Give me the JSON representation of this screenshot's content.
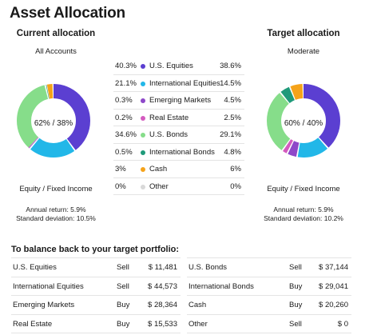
{
  "title": "Asset Allocation",
  "current": {
    "heading": "Current allocation",
    "subheading": "All Accounts",
    "center_label": "62% / 38%",
    "split_label": "Equity / Fixed Income",
    "annual_return": "Annual return: 5.9%",
    "std_dev": "Standard deviation: 10.5%"
  },
  "target": {
    "heading": "Target allocation",
    "subheading": "Moderate",
    "center_label": "60% / 40%",
    "split_label": "Equity / Fixed Income",
    "annual_return": "Annual return: 5.9%",
    "std_dev": "Standard deviation: 10.2%"
  },
  "legend": [
    {
      "current": "40.3%",
      "name": "U.S. Equities",
      "target": "38.6%",
      "color": "#5b3fd1",
      "icon": "dot-icon"
    },
    {
      "current": "21.1%",
      "name": "International Equities",
      "target": "14.5%",
      "color": "#22b7e8",
      "icon": "dot-icon"
    },
    {
      "current": "0.3%",
      "name": "Emerging Markets",
      "target": "4.5%",
      "color": "#8e48c9",
      "icon": "dot-icon"
    },
    {
      "current": "0.2%",
      "name": "Real Estate",
      "target": "2.5%",
      "color": "#d45bbf",
      "icon": "dot-icon"
    },
    {
      "current": "34.6%",
      "name": "U.S. Bonds",
      "target": "29.1%",
      "color": "#86dd8a",
      "icon": "dot-icon"
    },
    {
      "current": "0.5%",
      "name": "International Bonds",
      "target": "4.8%",
      "color": "#1f9a7a",
      "icon": "dot-icon"
    },
    {
      "current": "3%",
      "name": "Cash",
      "target": "6%",
      "color": "#f5a31a",
      "icon": "dot-icon"
    },
    {
      "current": "0%",
      "name": "Other",
      "target": "0%",
      "color": "#d9d9d9",
      "icon": "dot-icon"
    }
  ],
  "chart_data": [
    {
      "type": "pie",
      "title": "Current allocation",
      "categories": [
        "U.S. Equities",
        "International Equities",
        "Emerging Markets",
        "Real Estate",
        "U.S. Bonds",
        "International Bonds",
        "Cash",
        "Other"
      ],
      "values": [
        40.3,
        21.1,
        0.3,
        0.2,
        34.6,
        0.5,
        3,
        0
      ]
    },
    {
      "type": "pie",
      "title": "Target allocation",
      "categories": [
        "U.S. Equities",
        "International Equities",
        "Emerging Markets",
        "Real Estate",
        "U.S. Bonds",
        "International Bonds",
        "Cash",
        "Other"
      ],
      "values": [
        38.6,
        14.5,
        4.5,
        2.5,
        29.1,
        4.8,
        6,
        0
      ]
    }
  ],
  "balance": {
    "title": "To balance back to your target portfolio:",
    "left": [
      {
        "name": "U.S. Equities",
        "action": "Sell",
        "amount": "$ 11,481"
      },
      {
        "name": "International Equities",
        "action": "Sell",
        "amount": "$ 44,573"
      },
      {
        "name": "Emerging Markets",
        "action": "Buy",
        "amount": "$ 28,364"
      },
      {
        "name": "Real Estate",
        "action": "Buy",
        "amount": "$ 15,533"
      }
    ],
    "right": [
      {
        "name": "U.S. Bonds",
        "action": "Sell",
        "amount": "$ 37,144"
      },
      {
        "name": "International Bonds",
        "action": "Buy",
        "amount": "$ 29,041"
      },
      {
        "name": "Cash",
        "action": "Buy",
        "amount": "$ 20,260"
      },
      {
        "name": "Other",
        "action": "Sell",
        "amount": "$ 0"
      }
    ]
  }
}
